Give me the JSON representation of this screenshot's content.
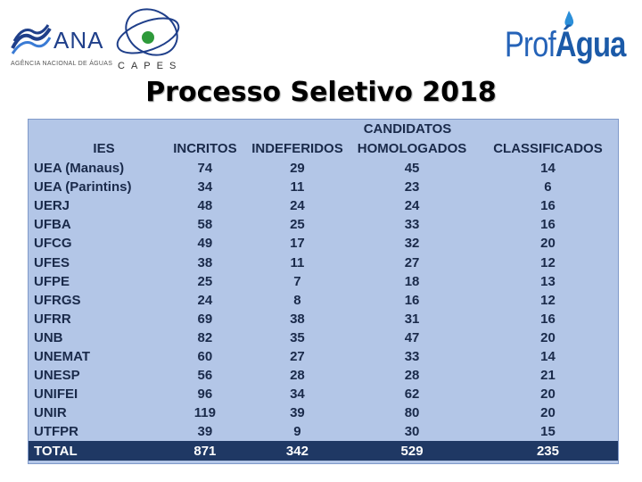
{
  "logos": {
    "ana_text": "ANA",
    "ana_sub": "AGÊNCIA NACIONAL DE ÁGUAS",
    "capes_text": "CAPES",
    "prof_text_1": "Prof",
    "prof_text_2": "Água"
  },
  "title": "Processo Seletivo 2018",
  "table": {
    "group_header": "CANDIDATOS",
    "headers": [
      "IES",
      "INCRITOS",
      "INDEFERIDOS",
      "HOMOLOGADOS",
      "CLASSIFICADOS"
    ],
    "rows": [
      [
        "UEA (Manaus)",
        "74",
        "29",
        "45",
        "14"
      ],
      [
        "UEA (Parintins)",
        "34",
        "11",
        "23",
        "6"
      ],
      [
        "UERJ",
        "48",
        "24",
        "24",
        "16"
      ],
      [
        "UFBA",
        "58",
        "25",
        "33",
        "16"
      ],
      [
        "UFCG",
        "49",
        "17",
        "32",
        "20"
      ],
      [
        "UFES",
        "38",
        "11",
        "27",
        "12"
      ],
      [
        "UFPE",
        "25",
        "7",
        "18",
        "13"
      ],
      [
        "UFRGS",
        "24",
        "8",
        "16",
        "12"
      ],
      [
        "UFRR",
        "69",
        "38",
        "31",
        "16"
      ],
      [
        "UNB",
        "82",
        "35",
        "47",
        "20"
      ],
      [
        "UNEMAT",
        "60",
        "27",
        "33",
        "14"
      ],
      [
        "UNESP",
        "56",
        "28",
        "28",
        "21"
      ],
      [
        "UNIFEI",
        "96",
        "34",
        "62",
        "20"
      ],
      [
        "UNIR",
        "119",
        "39",
        "80",
        "20"
      ],
      [
        "UTFPR",
        "39",
        "9",
        "30",
        "15"
      ]
    ],
    "total": [
      "TOTAL",
      "871",
      "342",
      "529",
      "235"
    ]
  },
  "colors": {
    "table_bg": "#b3c6e7",
    "total_bg": "#1f3864",
    "text": "#1a2a4a"
  }
}
